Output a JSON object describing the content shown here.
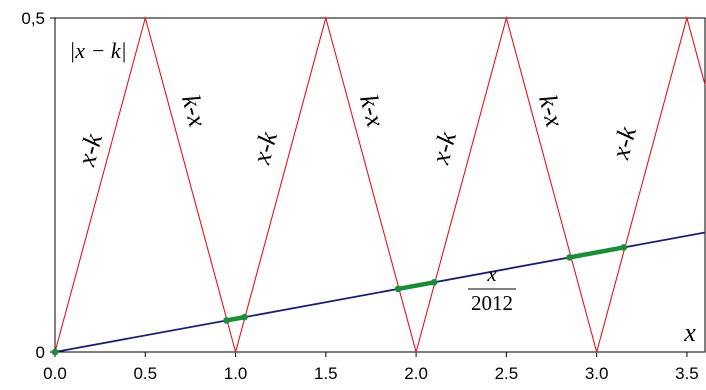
{
  "chart_data": {
    "type": "line",
    "title": "",
    "xlabel": "x",
    "ylabel": "",
    "xlim": [
      0,
      3.6
    ],
    "ylim": [
      0,
      0.5
    ],
    "x_ticks": [
      "0.0",
      "0.5",
      "1.0",
      "1.5",
      "2.0",
      "2.5",
      "3.0",
      "3.5"
    ],
    "y_ticks": [
      "0",
      "0,5"
    ],
    "grid": false,
    "series": [
      {
        "name": "|x − k|",
        "color": "#e8141c",
        "x": [
          0,
          0.5,
          1,
          1.5,
          2,
          2.5,
          3,
          3.5,
          3.6
        ],
        "y": [
          0,
          0.5,
          0,
          0.5,
          0,
          0.5,
          0,
          0.5,
          0.4
        ]
      },
      {
        "name": "x/2012",
        "color": "#1c1f6e",
        "x": [
          0,
          3.6
        ],
        "y": [
          0,
          0.1789
        ]
      }
    ],
    "highlight_segments": {
      "color": "#1a8c3a",
      "intervals": [
        [
          0.95,
          1.05
        ],
        [
          1.9,
          2.1
        ],
        [
          2.85,
          3.15
        ]
      ]
    },
    "marked_points": [
      0,
      0.95,
      1.05,
      1.9,
      2.1,
      2.85,
      3.15
    ],
    "segment_labels": [
      "x-k",
      "k-x",
      "x-k",
      "k-x",
      "x-k",
      "k-x",
      "x-k"
    ],
    "abs_label": "|x − k|",
    "line_label": {
      "numerator": "x",
      "denominator": "2012"
    }
  }
}
